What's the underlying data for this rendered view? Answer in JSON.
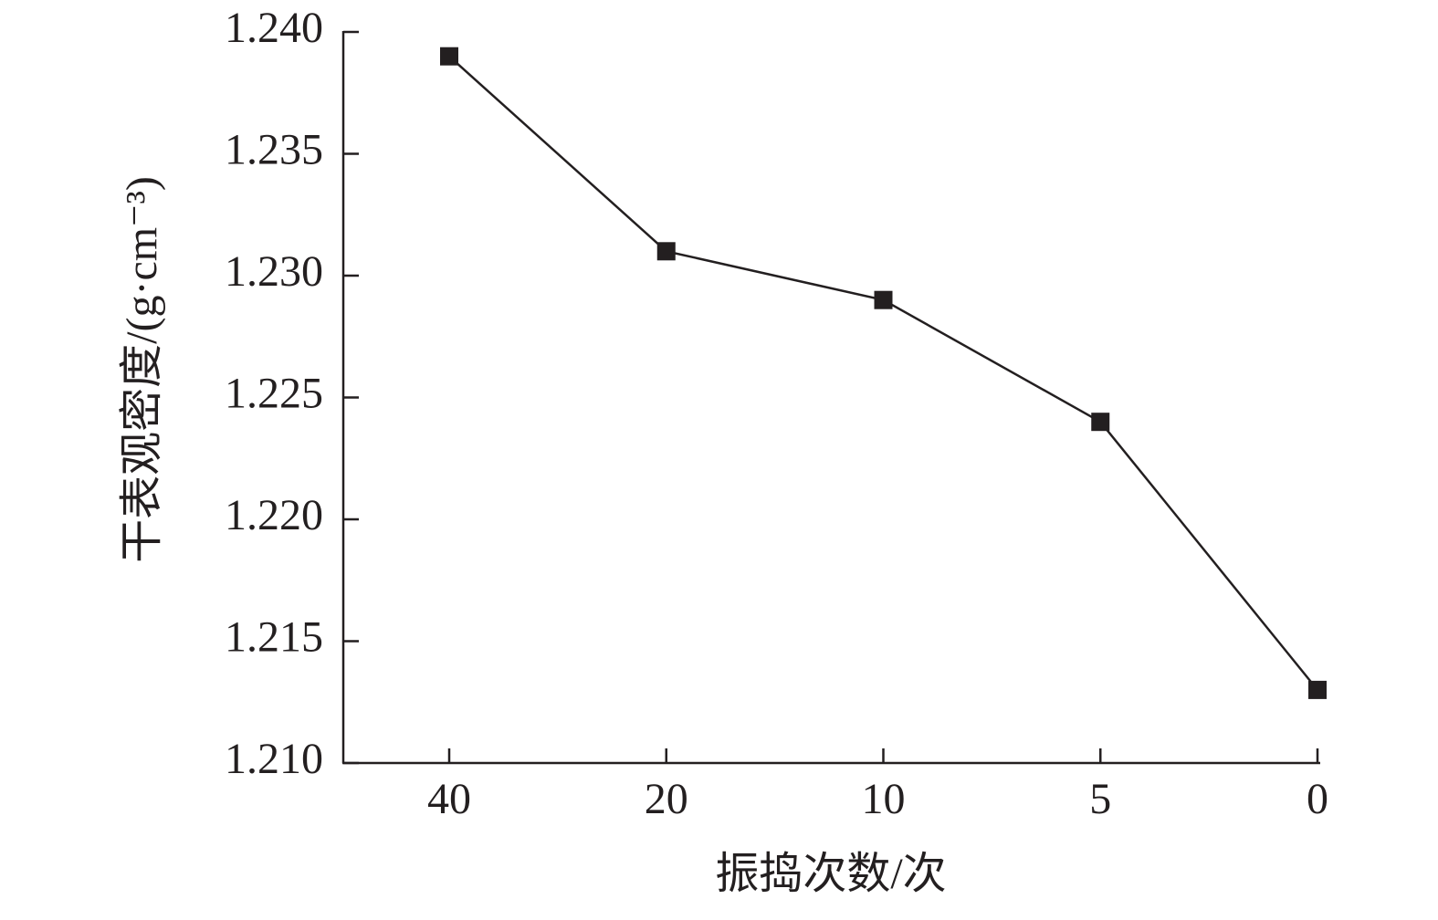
{
  "chart_data": {
    "type": "line",
    "x_label": "振捣次数/次",
    "y_label": "干表观密度/(g·cm⁻³)",
    "categories": [
      "40",
      "20",
      "10",
      "5",
      "0"
    ],
    "values": [
      1.239,
      1.231,
      1.229,
      1.224,
      1.213
    ],
    "color": "#231f20",
    "marker": "square",
    "ylim": [
      1.21,
      1.24
    ],
    "yticks": [
      {
        "value": 1.21,
        "label": "1.210"
      },
      1.215,
      {
        "value": 1.22,
        "label": "1.220"
      },
      1.225,
      {
        "value": 1.23,
        "label": "1.230"
      },
      1.235,
      {
        "value": 1.24,
        "label": "1.240"
      }
    ],
    "grid": false
  }
}
